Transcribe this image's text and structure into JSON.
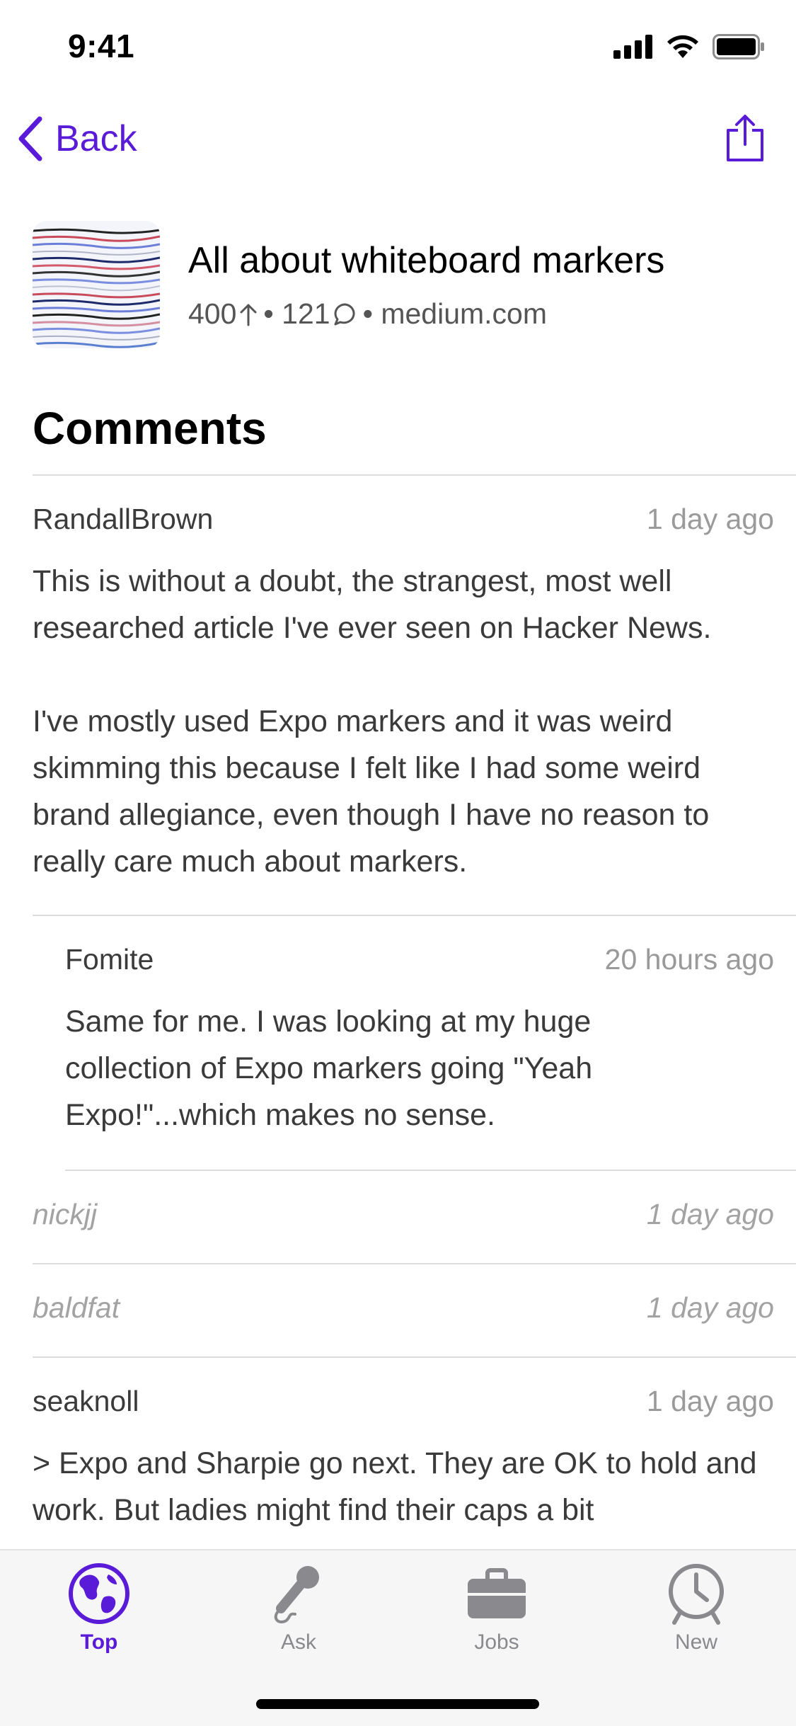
{
  "status": {
    "time": "9:41"
  },
  "nav": {
    "back_label": "Back"
  },
  "story": {
    "title": "All about whiteboard markers",
    "points": "400",
    "comments_count": "121",
    "domain": "medium.com"
  },
  "comments_heading": "Comments",
  "comments": [
    {
      "author": "RandallBrown",
      "time": "1 day ago",
      "paragraphs": [
        "This is without a doubt, the strangest, most well researched article I've ever seen on Hacker News.",
        "I've mostly used Expo markers and it was weird skimming this because I felt like I had some weird brand allegiance, even though I have no reason to really care much about markers."
      ]
    },
    {
      "author": "Fomite",
      "time": "20 hours ago",
      "paragraphs": [
        "Same for me. I was looking at my huge collection of Expo markers going \"Yeah Expo!\"...which makes no sense."
      ]
    },
    {
      "author": "nickjj",
      "time": "1 day ago"
    },
    {
      "author": "baldfat",
      "time": "1 day ago"
    },
    {
      "author": "seaknoll",
      "time": "1 day ago",
      "paragraphs": [
        "> Expo and Sharpie go next. They are OK to hold and work. But ladies might find their caps a bit"
      ]
    }
  ],
  "tabs": [
    {
      "label": "Top",
      "icon": "globe-icon",
      "active": true
    },
    {
      "label": "Ask",
      "icon": "microphone-icon",
      "active": false
    },
    {
      "label": "Jobs",
      "icon": "briefcase-icon",
      "active": false
    },
    {
      "label": "New",
      "icon": "clock-icon",
      "active": false
    }
  ],
  "colors": {
    "accent": "#5a1bd8",
    "inactive": "#8a8a8e",
    "meta": "#9a9a9a"
  }
}
